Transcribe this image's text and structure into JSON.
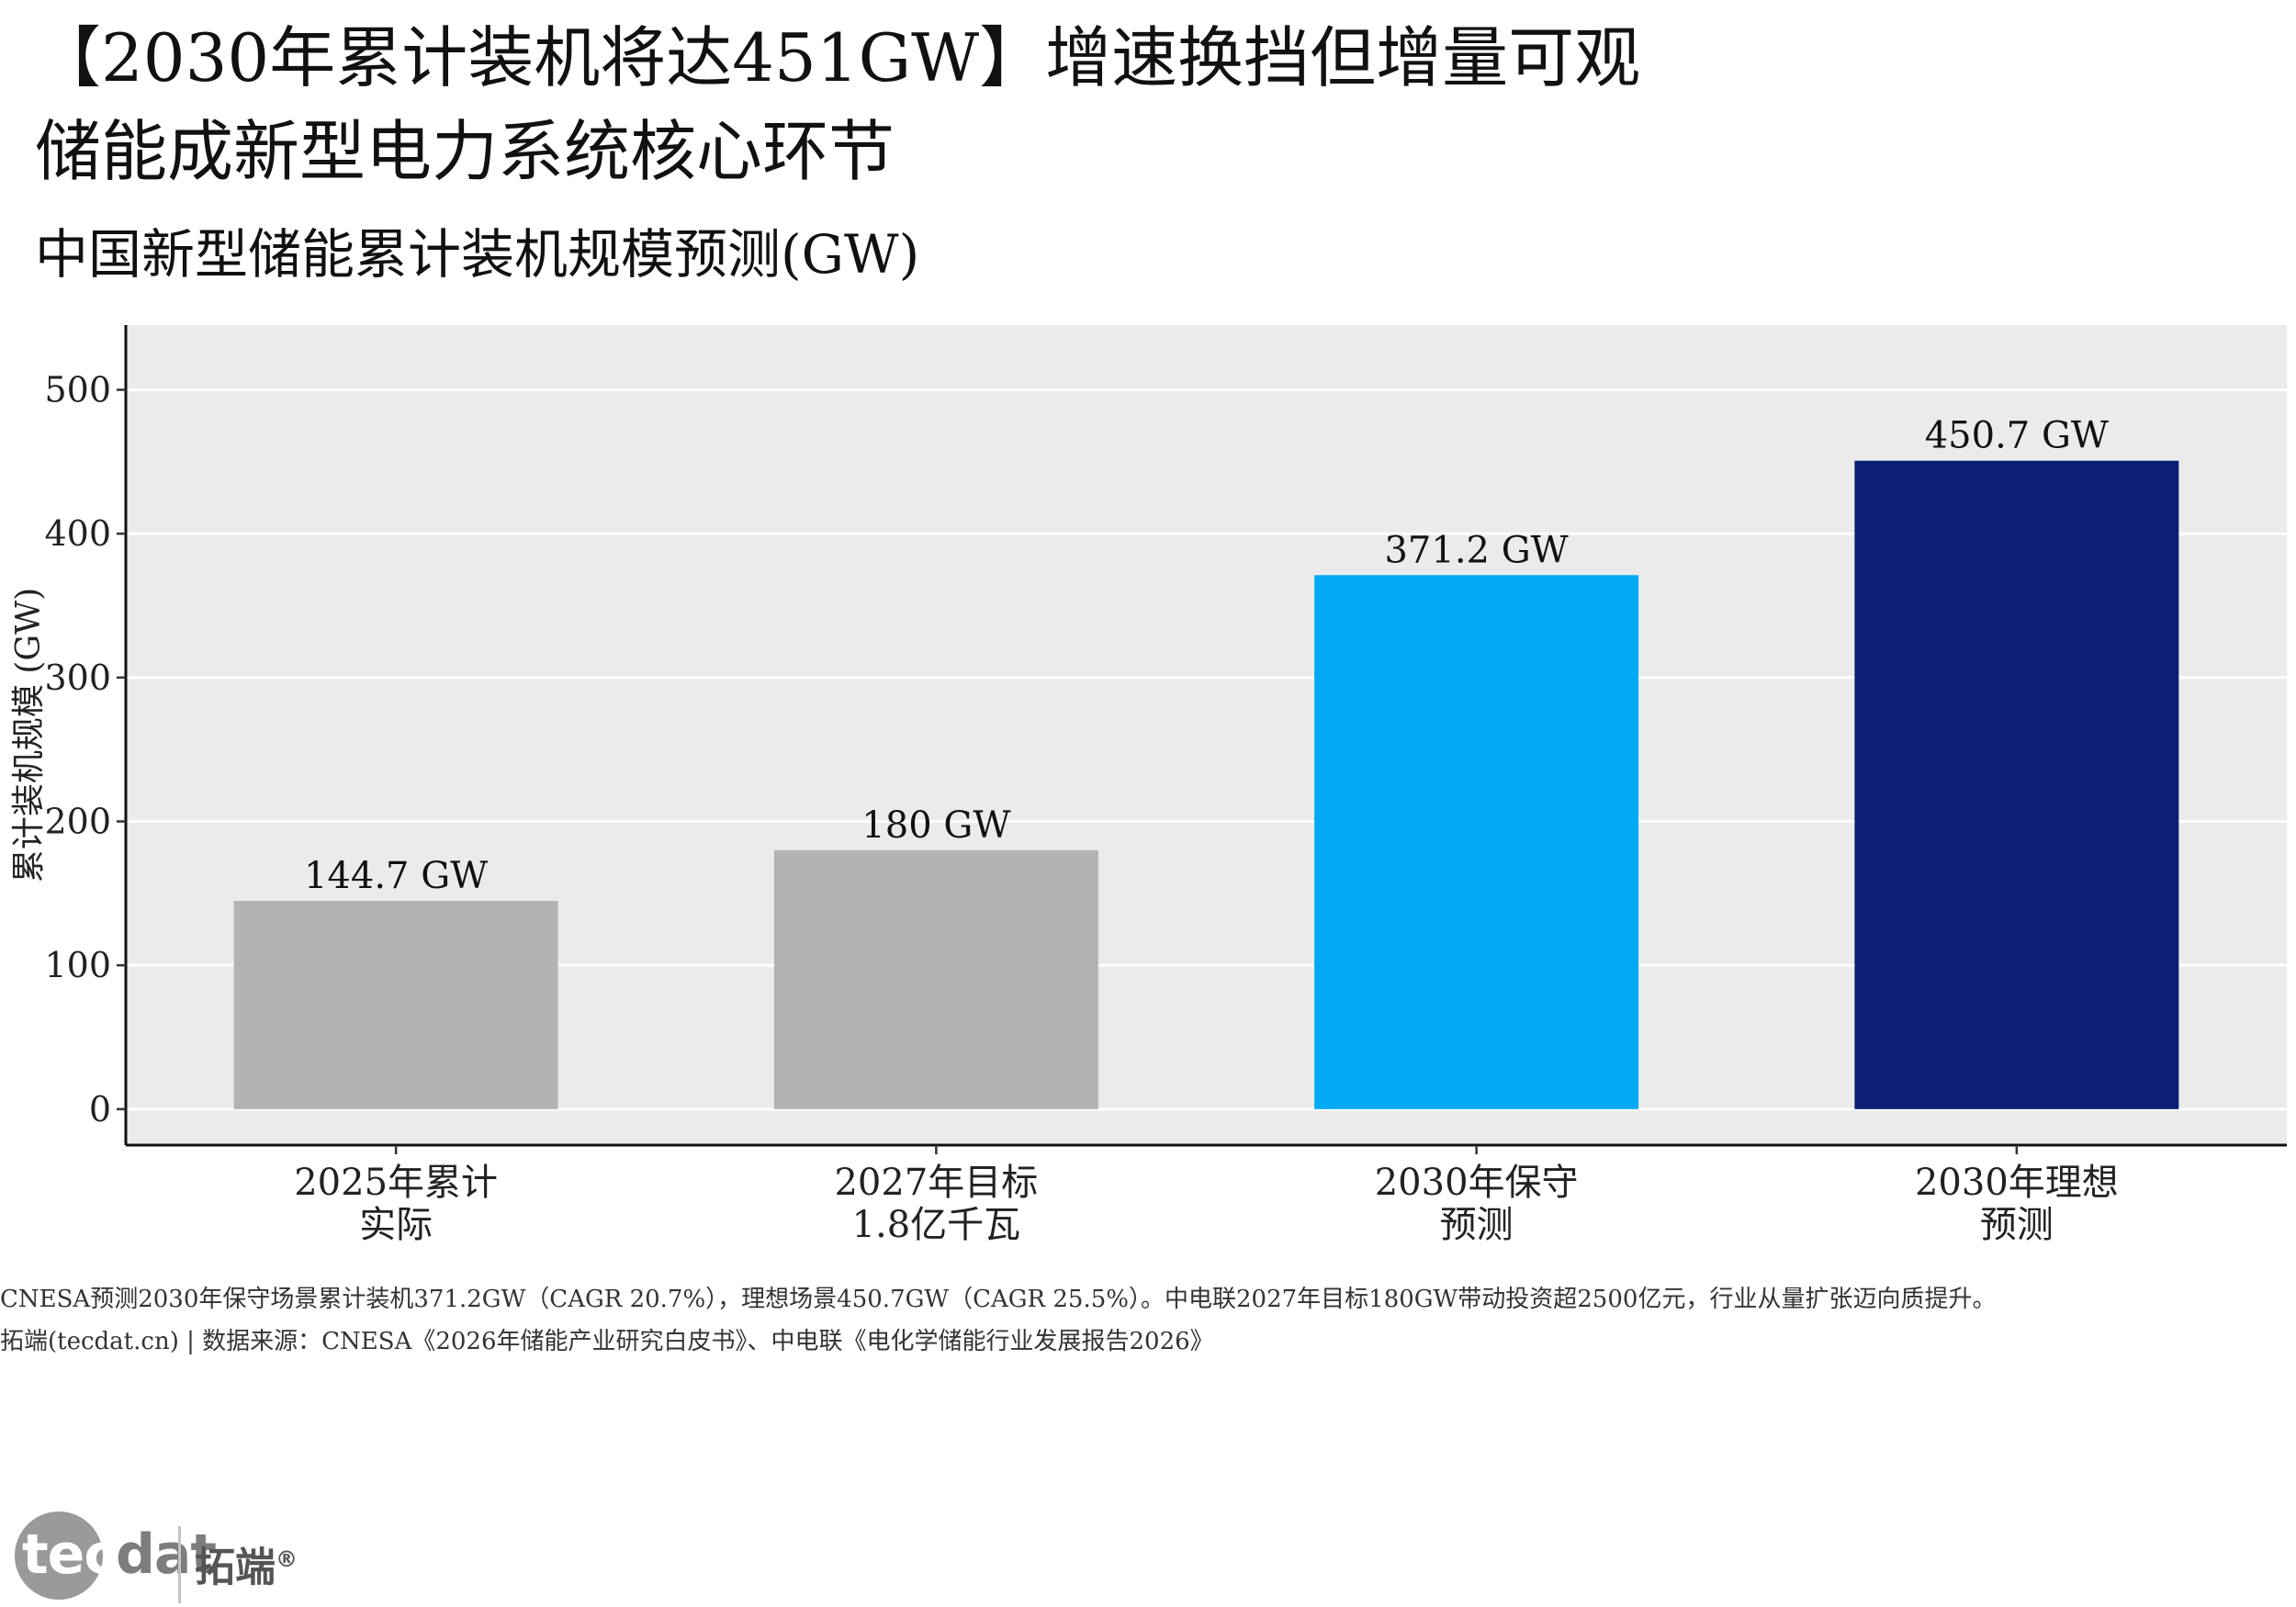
{
  "title_line1": "【2030年累计装机将达451GW】增速换挡但增量可观",
  "title_line2": "储能成新型电力系统核心环节",
  "subtitle": "中国新型储能累计装机规模预测(GW)",
  "chart_data": {
    "type": "bar",
    "categories": [
      [
        "2025年累计",
        "实际"
      ],
      [
        "2027年目标",
        "1.8亿千瓦"
      ],
      [
        "2030年保守",
        "预测"
      ],
      [
        "2030年理想",
        "预测"
      ]
    ],
    "values": [
      144.7,
      180,
      371.2,
      450.7
    ],
    "data_labels": [
      "144.7 GW",
      "180 GW",
      "371.2 GW",
      "450.7 GW"
    ],
    "bar_colors": [
      "#b3b3b3",
      "#b3b3b3",
      "#03a9f4",
      "#0a1f75"
    ],
    "ylabel": "累计装机规模 (GW)",
    "yticks": [
      0,
      100,
      200,
      300,
      400,
      500
    ],
    "ylim": [
      -25,
      545
    ],
    "grid": true,
    "panel_background": "#ebebeb"
  },
  "footnote": "CNESA预测2030年保守场景累计装机371.2GW（CAGR 20.7%），理想场景450.7GW（CAGR 25.5%）。中电联2027年目标180GW带动投资超2500亿元，行业从量扩张迈向质提升。",
  "source": "拓端(tecdat.cn) | 数据来源：CNESA《2026年储能产业研究白皮书》、中电联《电化学储能行业发展报告2026》",
  "logo": {
    "word_part1": "tec",
    "word_part2": "dat",
    "cn": "拓端",
    "reg": "®"
  }
}
